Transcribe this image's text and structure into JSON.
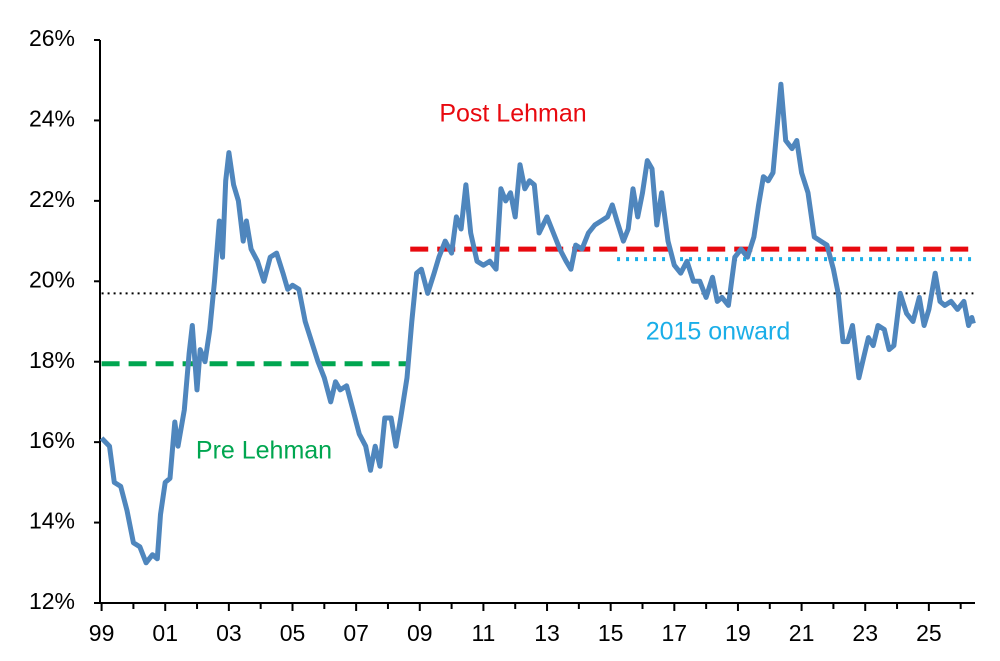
{
  "chart_data": {
    "type": "line",
    "x": [
      1999.0,
      1999.25,
      1999.4,
      1999.6,
      1999.8,
      2000.0,
      2000.2,
      2000.4,
      2000.6,
      2000.75,
      2000.85,
      2001.0,
      2001.15,
      2001.3,
      2001.4,
      2001.6,
      2001.75,
      2001.85,
      2002.0,
      2002.1,
      2002.25,
      2002.4,
      2002.55,
      2002.7,
      2002.8,
      2002.9,
      2003.0,
      2003.15,
      2003.3,
      2003.45,
      2003.55,
      2003.7,
      2003.9,
      2004.1,
      2004.3,
      2004.5,
      2004.7,
      2004.85,
      2005.0,
      2005.2,
      2005.4,
      2005.6,
      2005.8,
      2006.0,
      2006.2,
      2006.35,
      2006.5,
      2006.7,
      2006.9,
      2007.1,
      2007.3,
      2007.45,
      2007.6,
      2007.75,
      2007.9,
      2008.1,
      2008.25,
      2008.4,
      2008.6,
      2008.75,
      2008.9,
      2009.05,
      2009.25,
      2009.45,
      2009.6,
      2009.8,
      2010.0,
      2010.15,
      2010.3,
      2010.45,
      2010.6,
      2010.8,
      2011.0,
      2011.2,
      2011.4,
      2011.55,
      2011.7,
      2011.85,
      2012.0,
      2012.15,
      2012.3,
      2012.45,
      2012.6,
      2012.75,
      2013.0,
      2013.2,
      2013.4,
      2013.6,
      2013.75,
      2013.9,
      2014.1,
      2014.3,
      2014.5,
      2014.7,
      2014.9,
      2015.05,
      2015.2,
      2015.4,
      2015.55,
      2015.7,
      2015.85,
      2016.0,
      2016.15,
      2016.3,
      2016.45,
      2016.6,
      2016.8,
      2017.0,
      2017.2,
      2017.4,
      2017.6,
      2017.8,
      2018.0,
      2018.2,
      2018.35,
      2018.5,
      2018.7,
      2018.9,
      2019.1,
      2019.3,
      2019.5,
      2019.65,
      2019.8,
      2019.95,
      2020.1,
      2020.25,
      2020.35,
      2020.5,
      2020.7,
      2020.85,
      2021.0,
      2021.2,
      2021.4,
      2021.6,
      2021.8,
      2022.0,
      2022.15,
      2022.3,
      2022.45,
      2022.6,
      2022.8,
      2022.95,
      2023.1,
      2023.25,
      2023.4,
      2023.6,
      2023.75,
      2023.9,
      2024.1,
      2024.3,
      2024.5,
      2024.7,
      2024.85,
      2025.0,
      2025.2,
      2025.35,
      2025.5,
      2025.7,
      2025.9,
      2026.1,
      2026.25,
      2026.35,
      2026.4
    ],
    "series": [
      {
        "color": "#4f86bd",
        "values": [
          16.1,
          15.9,
          15.0,
          14.9,
          14.3,
          13.5,
          13.4,
          13.0,
          13.2,
          13.1,
          14.2,
          15.0,
          15.1,
          16.5,
          15.9,
          16.8,
          18.2,
          18.9,
          17.3,
          18.3,
          18.0,
          18.8,
          20.0,
          21.5,
          20.6,
          22.5,
          23.2,
          22.4,
          22.0,
          21.0,
          21.5,
          20.8,
          20.5,
          20.0,
          20.6,
          20.7,
          20.2,
          19.8,
          19.9,
          19.8,
          19.0,
          18.5,
          18.0,
          17.6,
          17.0,
          17.5,
          17.3,
          17.4,
          16.8,
          16.2,
          15.9,
          15.3,
          15.9,
          15.4,
          16.6,
          16.6,
          15.9,
          16.6,
          17.6,
          19.0,
          20.2,
          20.3,
          19.7,
          20.2,
          20.6,
          21.0,
          20.7,
          21.6,
          21.3,
          22.4,
          21.2,
          20.5,
          20.4,
          20.5,
          20.3,
          22.3,
          22.0,
          22.2,
          21.6,
          22.9,
          22.3,
          22.5,
          22.4,
          21.2,
          21.6,
          21.2,
          20.8,
          20.5,
          20.3,
          20.9,
          20.8,
          21.2,
          21.4,
          21.5,
          21.6,
          21.9,
          21.5,
          21.0,
          21.3,
          22.3,
          21.6,
          22.2,
          23.0,
          22.8,
          21.4,
          22.2,
          21.0,
          20.4,
          20.2,
          20.5,
          20.0,
          20.0,
          19.6,
          20.1,
          19.5,
          19.6,
          19.4,
          20.6,
          20.8,
          20.6,
          21.1,
          21.9,
          22.6,
          22.5,
          22.7,
          24.0,
          24.9,
          23.5,
          23.3,
          23.5,
          22.7,
          22.2,
          21.1,
          21.0,
          20.9,
          20.3,
          19.7,
          18.5,
          18.5,
          18.9,
          17.6,
          18.1,
          18.6,
          18.4,
          18.9,
          18.8,
          18.3,
          18.4,
          19.7,
          19.2,
          19.0,
          19.6,
          18.9,
          19.3,
          20.2,
          19.5,
          19.4,
          19.5,
          19.3,
          19.5,
          18.9,
          19.1,
          18.95
        ]
      }
    ],
    "hlines": [
      {
        "value": 19.7,
        "x": [
          1999.0,
          2026.4
        ],
        "color": "#000000",
        "style": "dotted"
      },
      {
        "name": "Pre Lehman",
        "value": 17.95,
        "x": [
          1999.0,
          2008.6
        ],
        "color": "#00a650",
        "style": "dashed"
      },
      {
        "name": "Post Lehman",
        "value": 20.8,
        "x": [
          2008.7,
          2026.4
        ],
        "color": "#e8090f",
        "style": "dashed"
      },
      {
        "name": "2015 onward",
        "value": 20.55,
        "x": [
          2015.2,
          2026.4
        ],
        "color": "#1aaee8",
        "style": "dotted"
      }
    ],
    "xlim": [
      1998.95,
      2026.45
    ],
    "ylim": [
      12,
      26
    ],
    "yticks": [
      {
        "value": 12,
        "label": "12%"
      },
      {
        "value": 14,
        "label": "14%"
      },
      {
        "value": 16,
        "label": "16%"
      },
      {
        "value": 18,
        "label": "18%"
      },
      {
        "value": 20,
        "label": "20%"
      },
      {
        "value": 22,
        "label": "22%"
      },
      {
        "value": 24,
        "label": "24%"
      },
      {
        "value": 26,
        "label": "26%"
      }
    ],
    "xticks": [
      {
        "value": 1999,
        "label": "99"
      },
      {
        "value": 2001,
        "label": "01"
      },
      {
        "value": 2003,
        "label": "03"
      },
      {
        "value": 2005,
        "label": "05"
      },
      {
        "value": 2007,
        "label": "07"
      },
      {
        "value": 2009,
        "label": "09"
      },
      {
        "value": 2011,
        "label": "11"
      },
      {
        "value": 2013,
        "label": "13"
      },
      {
        "value": 2015,
        "label": "15"
      },
      {
        "value": 2017,
        "label": "17"
      },
      {
        "value": 2019,
        "label": "19"
      },
      {
        "value": 2021,
        "label": "21"
      },
      {
        "value": 2023,
        "label": "23"
      },
      {
        "value": 2025,
        "label": "25"
      }
    ],
    "xminorticks": [
      2000,
      2002,
      2004,
      2006,
      2008,
      2010,
      2012,
      2014,
      2016,
      2018,
      2020,
      2022,
      2024,
      2026
    ]
  }
}
